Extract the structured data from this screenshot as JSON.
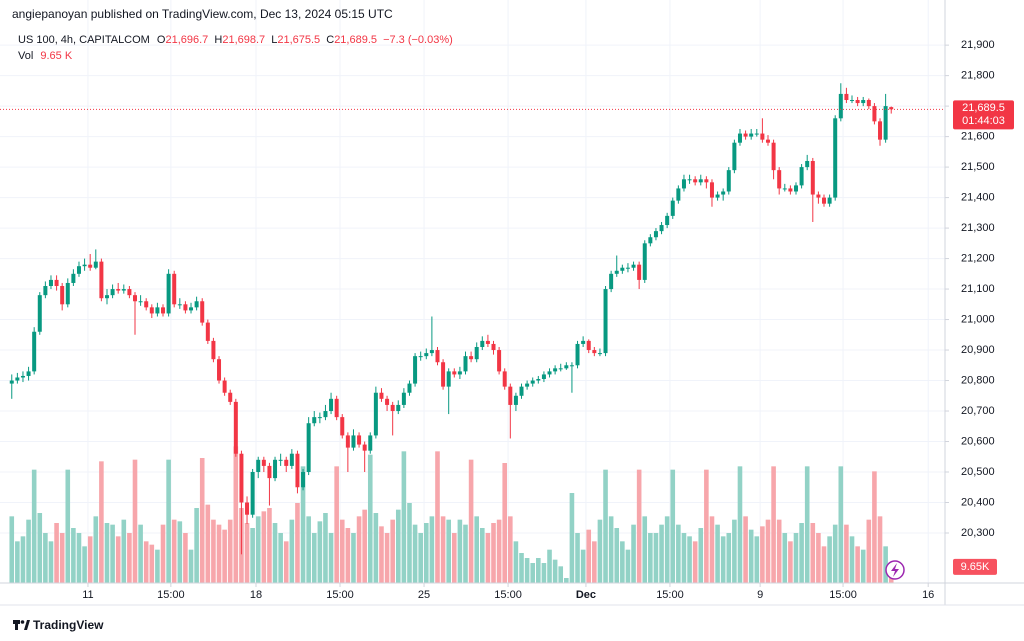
{
  "header": {
    "published": "angiepanoyan published on TradingView.com, Dec 13, 2024 05:15 UTC"
  },
  "legend": {
    "symbol": "US 100, 4h, CAPITALCOM",
    "o_label": "O",
    "o_value": "21,696.7",
    "h_label": "H",
    "h_value": "21,698.7",
    "l_label": "L",
    "l_value": "21,675.5",
    "c_label": "C",
    "c_value": "21,689.5",
    "change": "−7.3 (−0.03%)",
    "vol_label": "Vol",
    "vol_value": "9.65 K"
  },
  "price_tag": {
    "price": "21,689.5",
    "countdown": "01:44:03"
  },
  "volume_tag": "9.65K",
  "footer": "TradingView",
  "chart_data": {
    "type": "candlestick",
    "up_color": "#089981",
    "down_color": "#f23645",
    "volume_up_color": "#92d2c6",
    "volume_down_color": "#f7a6ab",
    "grid": true,
    "ylim": [
      20136,
      22048
    ],
    "yticks": [
      {
        "value": 20300,
        "label": "20,300"
      },
      {
        "value": 20400,
        "label": "20,400"
      },
      {
        "value": 20500,
        "label": "20,500"
      },
      {
        "value": 20600,
        "label": "20,600"
      },
      {
        "value": 20700,
        "label": "20,700"
      },
      {
        "value": 20800,
        "label": "20,800"
      },
      {
        "value": 20900,
        "label": "20,900"
      },
      {
        "value": 21000,
        "label": "21,000"
      },
      {
        "value": 21100,
        "label": "21,100"
      },
      {
        "value": 21200,
        "label": "21,200"
      },
      {
        "value": 21300,
        "label": "21,300"
      },
      {
        "value": 21400,
        "label": "21,400"
      },
      {
        "value": 21500,
        "label": "21,500"
      },
      {
        "value": 21600,
        "label": "21,600"
      },
      {
        "value": 21700,
        "label": "21,700"
      },
      {
        "value": 21800,
        "label": "21,800"
      },
      {
        "value": 21900,
        "label": "21,900"
      }
    ],
    "xlim": [
      -2.1,
      166.6
    ],
    "xticks": [
      {
        "value": 13.6,
        "label": "11"
      },
      {
        "value": 28.4,
        "label": "15:00"
      },
      {
        "value": 43.6,
        "label": "18"
      },
      {
        "value": 58.6,
        "label": "15:00"
      },
      {
        "value": 73.6,
        "label": "25"
      },
      {
        "value": 88.6,
        "label": "15:00"
      },
      {
        "value": 102.5,
        "label": "Dec"
      },
      {
        "value": 117.5,
        "label": "15:00"
      },
      {
        "value": 133.6,
        "label": "9"
      },
      {
        "value": 148.4,
        "label": "15:00"
      },
      {
        "value": 163.6,
        "label": "16"
      }
    ],
    "vlim": [
      0,
      72
    ],
    "candles": [
      [
        20790,
        20820,
        20740,
        20800
      ],
      [
        20800,
        20825,
        20790,
        20810
      ],
      [
        20810,
        20830,
        20795,
        20815
      ],
      [
        20815,
        20845,
        20800,
        20830
      ],
      [
        20830,
        20975,
        20820,
        20960
      ],
      [
        20960,
        21090,
        20950,
        21080
      ],
      [
        21080,
        21125,
        21070,
        21110
      ],
      [
        21110,
        21145,
        21100,
        21130
      ],
      [
        21130,
        21145,
        21095,
        21110
      ],
      [
        21110,
        21120,
        21030,
        21050
      ],
      [
        21050,
        21135,
        21040,
        21120
      ],
      [
        21120,
        21165,
        21110,
        21150
      ],
      [
        21150,
        21190,
        21140,
        21175
      ],
      [
        21175,
        21200,
        21160,
        21180
      ],
      [
        21180,
        21215,
        21160,
        21170
      ],
      [
        21170,
        21230,
        21165,
        21190
      ],
      [
        21190,
        21200,
        21060,
        21070
      ],
      [
        21070,
        21100,
        21050,
        21080
      ],
      [
        21080,
        21115,
        21070,
        21100
      ],
      [
        21100,
        21120,
        21085,
        21095
      ],
      [
        21095,
        21115,
        21085,
        21100
      ],
      [
        21100,
        21110,
        21070,
        21080
      ],
      [
        21080,
        21090,
        20950,
        21060
      ],
      [
        21060,
        21080,
        21045,
        21060
      ],
      [
        21060,
        21070,
        21030,
        21040
      ],
      [
        21040,
        21050,
        21005,
        21020
      ],
      [
        21020,
        21055,
        21010,
        21040
      ],
      [
        21040,
        21050,
        21010,
        21020
      ],
      [
        21020,
        21165,
        21010,
        21150
      ],
      [
        21150,
        21160,
        21040,
        21050
      ],
      [
        21050,
        21070,
        21035,
        21050
      ],
      [
        21050,
        21060,
        21020,
        21030
      ],
      [
        21030,
        21055,
        21020,
        21040
      ],
      [
        21040,
        21075,
        21030,
        21060
      ],
      [
        21060,
        21070,
        20980,
        20990
      ],
      [
        20990,
        21000,
        20920,
        20930
      ],
      [
        20930,
        20940,
        20860,
        20870
      ],
      [
        20870,
        20880,
        20790,
        20800
      ],
      [
        20800,
        20810,
        20750,
        20760
      ],
      [
        20760,
        20770,
        20720,
        20730
      ],
      [
        20730,
        20740,
        20550,
        20560
      ],
      [
        20560,
        20570,
        20230,
        20400
      ],
      [
        20400,
        20420,
        20330,
        20360
      ],
      [
        20360,
        20510,
        20350,
        20500
      ],
      [
        20500,
        20550,
        20480,
        20540
      ],
      [
        20540,
        20550,
        20500,
        20520
      ],
      [
        20520,
        20530,
        20390,
        20480
      ],
      [
        20480,
        20550,
        20470,
        20540
      ],
      [
        20540,
        20560,
        20520,
        20540
      ],
      [
        20540,
        20550,
        20500,
        20520
      ],
      [
        20520,
        20575,
        20510,
        20560
      ],
      [
        20560,
        20570,
        20430,
        20450
      ],
      [
        20450,
        20510,
        20440,
        20500
      ],
      [
        20500,
        20680,
        20490,
        20660
      ],
      [
        20660,
        20700,
        20650,
        20680
      ],
      [
        20680,
        20695,
        20660,
        20680
      ],
      [
        20680,
        20720,
        20670,
        20700
      ],
      [
        20700,
        20760,
        20690,
        20740
      ],
      [
        20740,
        20750,
        20670,
        20680
      ],
      [
        20680,
        20690,
        20610,
        20620
      ],
      [
        20620,
        20630,
        20500,
        20580
      ],
      [
        20580,
        20640,
        20570,
        20620
      ],
      [
        20620,
        20630,
        20580,
        20590
      ],
      [
        20590,
        20600,
        20500,
        20570
      ],
      [
        20570,
        20630,
        20560,
        20620
      ],
      [
        20620,
        20780,
        20610,
        20760
      ],
      [
        20760,
        20775,
        20730,
        20740
      ],
      [
        20740,
        20750,
        20700,
        20720
      ],
      [
        20720,
        20730,
        20620,
        20700
      ],
      [
        20700,
        20735,
        20690,
        20720
      ],
      [
        20720,
        20775,
        20710,
        20760
      ],
      [
        20760,
        20800,
        20750,
        20790
      ],
      [
        20790,
        20890,
        20780,
        20880
      ],
      [
        20880,
        20895,
        20865,
        20880
      ],
      [
        20880,
        20905,
        20870,
        20890
      ],
      [
        20890,
        21010,
        20880,
        20900
      ],
      [
        20900,
        20910,
        20850,
        20860
      ],
      [
        20860,
        20870,
        20770,
        20780
      ],
      [
        20780,
        20840,
        20690,
        20830
      ],
      [
        20830,
        20840,
        20810,
        20820
      ],
      [
        20820,
        20845,
        20805,
        20830
      ],
      [
        20830,
        20895,
        20820,
        20880
      ],
      [
        20880,
        20895,
        20860,
        20870
      ],
      [
        20870,
        20925,
        20860,
        20910
      ],
      [
        20910,
        20945,
        20900,
        20930
      ],
      [
        20930,
        20950,
        20910,
        20920
      ],
      [
        20920,
        20930,
        20885,
        20900
      ],
      [
        20900,
        20910,
        20820,
        20830
      ],
      [
        20830,
        20840,
        20770,
        20780
      ],
      [
        20780,
        20790,
        20610,
        20720
      ],
      [
        20720,
        20760,
        20700,
        20750
      ],
      [
        20750,
        20790,
        20740,
        20780
      ],
      [
        20780,
        20800,
        20770,
        20790
      ],
      [
        20790,
        20810,
        20780,
        20800
      ],
      [
        20800,
        20815,
        20790,
        20805
      ],
      [
        20805,
        20830,
        20795,
        20820
      ],
      [
        20820,
        20840,
        20810,
        20830
      ],
      [
        20830,
        20850,
        20820,
        20840
      ],
      [
        20840,
        20855,
        20830,
        20840
      ],
      [
        20840,
        20860,
        20835,
        20850
      ],
      [
        20850,
        20860,
        20760,
        20850
      ],
      [
        20850,
        20930,
        20840,
        20920
      ],
      [
        20920,
        20945,
        20910,
        20930
      ],
      [
        20930,
        20935,
        20890,
        20900
      ],
      [
        20900,
        20910,
        20880,
        20890
      ],
      [
        20890,
        20905,
        20880,
        20890
      ],
      [
        20890,
        21110,
        20880,
        21100
      ],
      [
        21100,
        21160,
        21090,
        21150
      ],
      [
        21150,
        21210,
        21140,
        21160
      ],
      [
        21160,
        21180,
        21150,
        21170
      ],
      [
        21170,
        21185,
        21155,
        21170
      ],
      [
        21170,
        21190,
        21160,
        21180
      ],
      [
        21180,
        21190,
        21100,
        21130
      ],
      [
        21130,
        21260,
        21120,
        21250
      ],
      [
        21250,
        21280,
        21240,
        21270
      ],
      [
        21270,
        21300,
        21260,
        21290
      ],
      [
        21290,
        21320,
        21280,
        21310
      ],
      [
        21310,
        21350,
        21300,
        21340
      ],
      [
        21340,
        21400,
        21330,
        21390
      ],
      [
        21390,
        21440,
        21380,
        21430
      ],
      [
        21430,
        21475,
        21420,
        21460
      ],
      [
        21460,
        21475,
        21445,
        21460
      ],
      [
        21460,
        21470,
        21440,
        21450
      ],
      [
        21450,
        21475,
        21440,
        21460
      ],
      [
        21460,
        21470,
        21430,
        21450
      ],
      [
        21450,
        21460,
        21370,
        21400
      ],
      [
        21400,
        21420,
        21390,
        21410
      ],
      [
        21410,
        21430,
        21390,
        21420
      ],
      [
        21420,
        21500,
        21410,
        21490
      ],
      [
        21490,
        21590,
        21480,
        21580
      ],
      [
        21580,
        21625,
        21570,
        21610
      ],
      [
        21610,
        21620,
        21590,
        21600
      ],
      [
        21600,
        21625,
        21590,
        21610
      ],
      [
        21610,
        21625,
        21600,
        21610
      ],
      [
        21610,
        21660,
        21580,
        21590
      ],
      [
        21590,
        21605,
        21570,
        21580
      ],
      [
        21580,
        21590,
        21460,
        21490
      ],
      [
        21490,
        21500,
        21410,
        21430
      ],
      [
        21430,
        21445,
        21420,
        21430
      ],
      [
        21430,
        21440,
        21410,
        21420
      ],
      [
        21420,
        21450,
        21410,
        21440
      ],
      [
        21440,
        21510,
        21430,
        21500
      ],
      [
        21500,
        21540,
        21490,
        21520
      ],
      [
        21520,
        21530,
        21320,
        21410
      ],
      [
        21410,
        21420,
        21380,
        21400
      ],
      [
        21400,
        21410,
        21370,
        21380
      ],
      [
        21380,
        21410,
        21370,
        21400
      ],
      [
        21400,
        21670,
        21390,
        21660
      ],
      [
        21660,
        21775,
        21650,
        21740
      ],
      [
        21740,
        21760,
        21710,
        21720
      ],
      [
        21720,
        21735,
        21710,
        21720
      ],
      [
        21720,
        21730,
        21700,
        21710
      ],
      [
        21710,
        21730,
        21700,
        21720
      ],
      [
        21720,
        21725,
        21690,
        21700
      ],
      [
        21700,
        21710,
        21640,
        21650
      ],
      [
        21650,
        21660,
        21570,
        21590
      ],
      [
        21590,
        21740,
        21580,
        21700
      ],
      [
        21696.7,
        21698.7,
        21675.5,
        21689.5
      ]
    ],
    "volume": [
      40,
      25,
      28,
      38,
      68,
      42,
      30,
      25,
      36,
      30,
      68,
      33,
      30,
      22,
      28,
      40,
      73,
      36,
      35,
      28,
      38,
      30,
      74,
      35,
      25,
      23,
      20,
      35,
      74,
      38,
      37,
      30,
      20,
      45,
      75,
      47,
      38,
      35,
      32,
      38,
      82,
      45,
      36,
      33,
      40,
      43,
      45,
      36,
      30,
      25,
      38,
      48,
      70,
      40,
      30,
      37,
      42,
      30,
      70,
      38,
      33,
      30,
      40,
      44,
      77,
      42,
      34,
      30,
      38,
      44,
      79,
      48,
      35,
      30,
      36,
      40,
      79,
      40,
      38,
      30,
      38,
      35,
      74,
      40,
      33,
      30,
      36,
      38,
      72,
      40,
      25,
      18,
      15,
      12,
      15,
      12,
      20,
      14,
      10,
      3,
      54,
      30,
      20,
      32,
      25,
      38,
      68,
      40,
      33,
      25,
      20,
      35,
      68,
      40,
      30,
      30,
      35,
      40,
      68,
      35,
      30,
      28,
      25,
      33,
      68,
      40,
      35,
      28,
      30,
      38,
      70,
      40,
      32,
      28,
      34,
      38,
      70,
      38,
      30,
      25,
      30,
      36,
      70,
      36,
      30,
      22,
      28,
      35,
      70,
      35,
      28,
      22,
      20,
      38,
      67,
      40,
      22,
      9.65
    ]
  }
}
